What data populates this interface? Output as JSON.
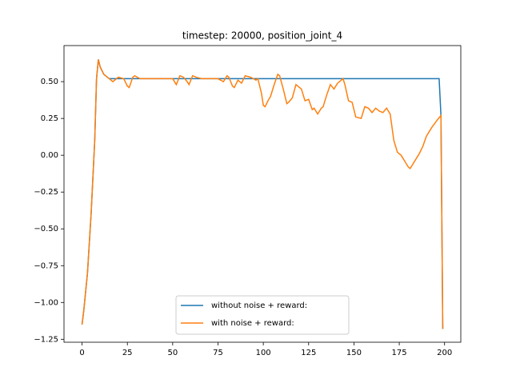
{
  "chart_data": {
    "type": "line",
    "title": "timestep: 20000, position_joint_4",
    "xlim": [
      -9.95,
      208.95
    ],
    "xticks": [
      0,
      25,
      50,
      75,
      100,
      125,
      150,
      175,
      200
    ],
    "ylim": [
      -1.27,
      0.745
    ],
    "yticks": [
      {
        "value": -1.25,
        "label": "−1.25"
      },
      {
        "value": -1.0,
        "label": "−1.00"
      },
      {
        "value": -0.75,
        "label": "−0.75"
      },
      {
        "value": -0.5,
        "label": "−0.50"
      },
      {
        "value": -0.25,
        "label": "−0.25"
      },
      {
        "value": 0,
        "label": "0.00"
      },
      {
        "value": 0.25,
        "label": "0.25"
      },
      {
        "value": 0.5,
        "label": "0.50"
      }
    ],
    "legend": "lower center",
    "series": [
      {
        "name": "without noise + reward:",
        "color": "#1f77b4",
        "x": [
          0,
          1,
          3,
          5,
          7,
          8,
          9,
          10,
          12,
          15,
          197,
          198,
          199
        ],
        "values": [
          -1.15,
          -1.05,
          -0.8,
          -0.4,
          0.1,
          0.52,
          0.65,
          0.6,
          0.55,
          0.52,
          0.52,
          0.27,
          -1.18
        ]
      },
      {
        "name": "with noise + reward:",
        "color": "#ff7f0e",
        "x": [
          0,
          1,
          3,
          5,
          7,
          8,
          9,
          10,
          12,
          15,
          17,
          20,
          23,
          25,
          26,
          28,
          29,
          32,
          40,
          50,
          52,
          54,
          56,
          58,
          59,
          61,
          63,
          66,
          75,
          78,
          80,
          81,
          83,
          84,
          86,
          88,
          90,
          93,
          96,
          97,
          99,
          100,
          101,
          103,
          104,
          106,
          108,
          109,
          111,
          113,
          114,
          116,
          118,
          121,
          123,
          125,
          127,
          128,
          130,
          132,
          133,
          135,
          137,
          139,
          141,
          144,
          145,
          147,
          149,
          151,
          154,
          156,
          158,
          160,
          162,
          164,
          166,
          168,
          170,
          172,
          174,
          176,
          178,
          180,
          181,
          183,
          186,
          188,
          190,
          193,
          196,
          198,
          199
        ],
        "values": [
          -1.15,
          -1.05,
          -0.8,
          -0.4,
          0.1,
          0.52,
          0.65,
          0.6,
          0.55,
          0.52,
          0.5,
          0.53,
          0.52,
          0.47,
          0.46,
          0.53,
          0.54,
          0.52,
          0.52,
          0.52,
          0.48,
          0.54,
          0.53,
          0.5,
          0.48,
          0.54,
          0.53,
          0.52,
          0.52,
          0.5,
          0.54,
          0.53,
          0.47,
          0.46,
          0.51,
          0.49,
          0.54,
          0.53,
          0.51,
          0.52,
          0.42,
          0.34,
          0.33,
          0.38,
          0.4,
          0.48,
          0.55,
          0.54,
          0.45,
          0.35,
          0.36,
          0.39,
          0.48,
          0.45,
          0.37,
          0.38,
          0.31,
          0.32,
          0.28,
          0.32,
          0.33,
          0.41,
          0.48,
          0.45,
          0.49,
          0.52,
          0.48,
          0.37,
          0.36,
          0.26,
          0.25,
          0.33,
          0.32,
          0.29,
          0.32,
          0.3,
          0.29,
          0.32,
          0.28,
          0.1,
          0.02,
          0.0,
          -0.04,
          -0.08,
          -0.09,
          -0.05,
          0.01,
          0.06,
          0.13,
          0.19,
          0.24,
          0.27,
          -1.18
        ]
      }
    ]
  }
}
